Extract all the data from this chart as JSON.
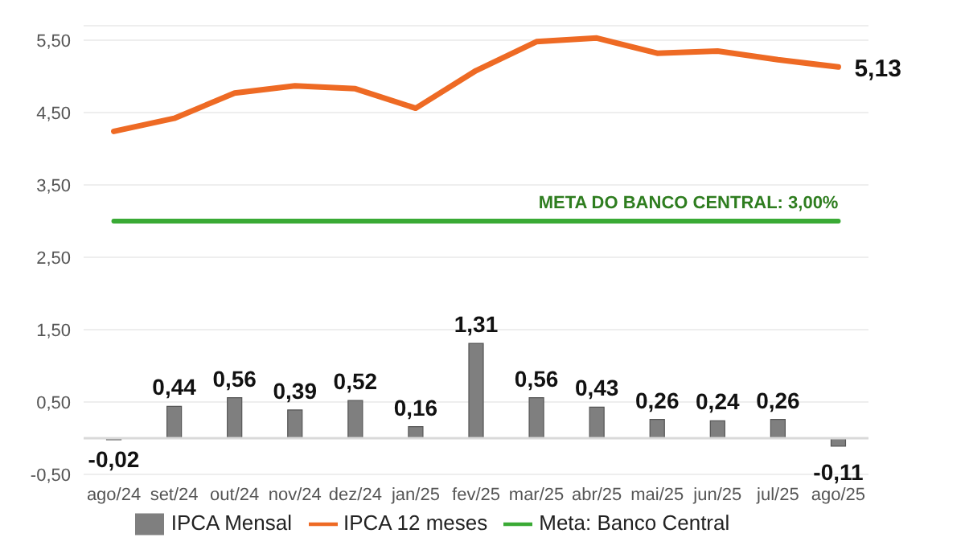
{
  "chart_data": {
    "type": "bar",
    "categories": [
      "ago/24",
      "set/24",
      "out/24",
      "nov/24",
      "dez/24",
      "jan/25",
      "fev/25",
      "mar/25",
      "abr/25",
      "mai/25",
      "jun/25",
      "jul/25",
      "ago/25"
    ],
    "series": [
      {
        "name": "IPCA Mensal",
        "color": "#7f7f7f",
        "values": [
          -0.02,
          0.44,
          0.56,
          0.39,
          0.52,
          0.16,
          1.31,
          0.56,
          0.43,
          0.26,
          0.24,
          0.26,
          -0.11
        ],
        "value_labels": [
          "-0,02",
          "0,44",
          "0,56",
          "0,39",
          "0,52",
          "0,16",
          "1,31",
          "0,56",
          "0,43",
          "0,26",
          "0,24",
          "0,26",
          "-0,11"
        ]
      },
      {
        "name": "IPCA 12 meses",
        "type": "line",
        "color": "#ee6a24",
        "values": [
          4.24,
          4.42,
          4.77,
          4.87,
          4.83,
          4.56,
          5.08,
          5.48,
          5.53,
          5.32,
          5.35,
          5.23,
          5.13
        ],
        "value_labels": [
          null,
          null,
          null,
          null,
          null,
          null,
          null,
          null,
          null,
          null,
          null,
          null,
          "5,13"
        ]
      },
      {
        "name": "Meta: Banco Central",
        "type": "line",
        "color": "#3aaa35",
        "values": [
          3,
          3,
          3,
          3,
          3,
          3,
          3,
          3,
          3,
          3,
          3,
          3,
          3
        ]
      }
    ],
    "annotations": [
      "META DO BANCO CENTRAL: 3,00%"
    ],
    "ylim": [
      -0.5,
      5.7
    ],
    "yticks": [
      {
        "value": -0.5,
        "label": "-0,50"
      },
      {
        "value": 0.5,
        "label": "0,50"
      },
      {
        "value": 1.5,
        "label": "1,50"
      },
      {
        "value": 2.5,
        "label": "2,50"
      },
      {
        "value": 3.5,
        "label": "3,50"
      },
      {
        "value": 4.5,
        "label": "4,50"
      },
      {
        "value": 5.5,
        "label": "5,50"
      }
    ],
    "ref_lines": [
      {
        "axis": "y",
        "value": 0,
        "label": null,
        "color": "#d9d9d9"
      }
    ],
    "grid": "y",
    "legend": "bottom"
  }
}
